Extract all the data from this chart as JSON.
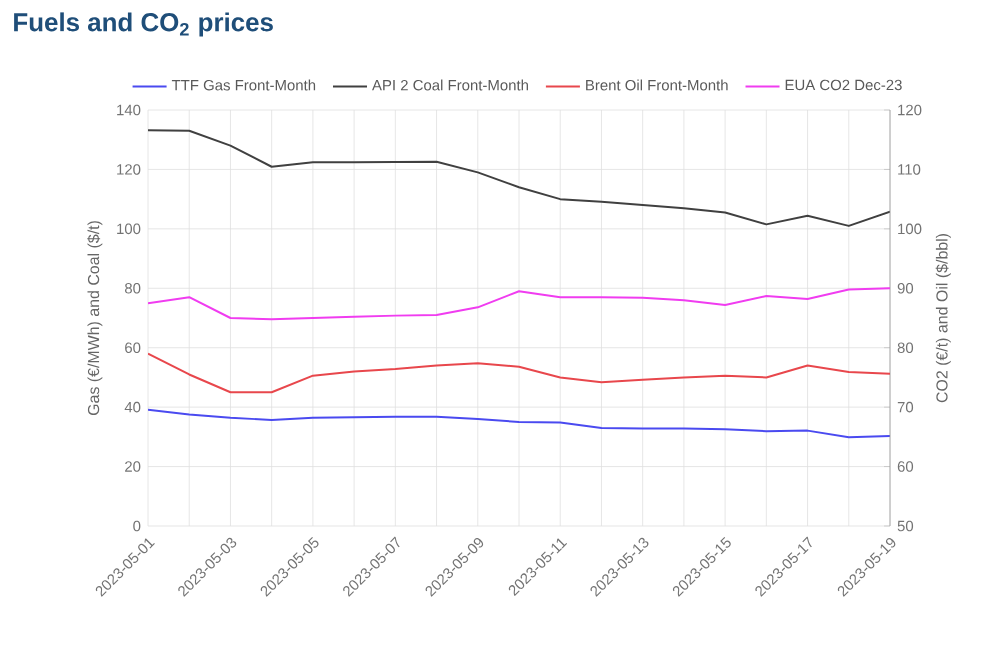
{
  "chart_data": {
    "type": "line",
    "title": "Fuels and CO$_{2}$ prices",
    "ylabel": "Gas (€/MWh) and Coal ($/t)",
    "y2label": "CO2 (€/t) and Oil ($/bbl)",
    "x": [
      "2023-05-01",
      "2023-05-02",
      "2023-05-03",
      "2023-05-04",
      "2023-05-05",
      "2023-05-06",
      "2023-05-07",
      "2023-05-08",
      "2023-05-09",
      "2023-05-10",
      "2023-05-11",
      "2023-05-12",
      "2023-05-13",
      "2023-05-14",
      "2023-05-15",
      "2023-05-16",
      "2023-05-17",
      "2023-05-18",
      "2023-05-19"
    ],
    "xlim": [
      "2023-05-01",
      "2023-05-19"
    ],
    "xticks": [
      "2023-05-01",
      "2023-05-03",
      "2023-05-05",
      "2023-05-07",
      "2023-05-09",
      "2023-05-11",
      "2023-05-13",
      "2023-05-15",
      "2023-05-17",
      "2023-05-19"
    ],
    "ylim": [
      0,
      140
    ],
    "yticks": [
      0,
      20,
      40,
      60,
      80,
      100,
      120,
      140
    ],
    "y2lim": [
      50,
      120
    ],
    "y2ticks": [
      50,
      60,
      70,
      80,
      90,
      100,
      110,
      120
    ],
    "grid": true,
    "legend": "top",
    "series": [
      {
        "name": "TTF Gas Front-Month",
        "color": "#4a4af0",
        "values": [
          39.1,
          37.5,
          36.4,
          35.7,
          36.4,
          36.6,
          36.8,
          36.8,
          36,
          35,
          34.8,
          33,
          32.8,
          32.8,
          32.6,
          31.9,
          32.1,
          29.9,
          30.3
        ]
      },
      {
        "name": "API 2 Coal Front-Month",
        "color": "#404040",
        "values": [
          133.2,
          133,
          128,
          120.9,
          122.4,
          122.4,
          122.5,
          122.6,
          119,
          114,
          110,
          109.1,
          108,
          106.9,
          105.5,
          101.5,
          104.4,
          101,
          105.8
        ]
      },
      {
        "name": "Brent Oil Front-Month",
        "color": "#e8474c",
        "axis": "y2",
        "values": [
          79,
          75.5,
          72.5,
          72.5,
          75.3,
          76,
          76.4,
          77,
          77.4,
          76.8,
          75,
          74.2,
          74.6,
          75,
          75.3,
          75,
          77,
          75.9,
          75.6
        ]
      },
      {
        "name": "EUA CO2 Dec-23",
        "color": "#f03cf0",
        "axis": "y2",
        "values": [
          87.5,
          88.5,
          85,
          84.8,
          85,
          85.2,
          85.4,
          85.5,
          86.8,
          89.5,
          88.5,
          88.5,
          88.4,
          88,
          87.2,
          88.7,
          88.2,
          89.8,
          90
        ]
      }
    ]
  }
}
